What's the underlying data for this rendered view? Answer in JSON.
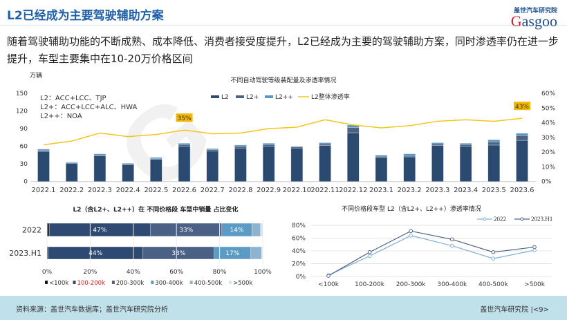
{
  "header": {
    "title": "L2已经成为主要驾驶辅助方案",
    "logo_cn": "盖世汽车研究院",
    "logo_en_g": "G",
    "logo_en_rest": "asgoo"
  },
  "paragraph": "随着驾驶辅助功能的不断成熟、成本降低、消费者接受度提升，L2已经成为主要的驾驶辅助方案，同时渗透率仍在进一步提升，车型主要集中在10-20万价格区间",
  "notes": [
    "L2：ACC+LCC、TJP",
    "L2+：ACC+LCC+ALC、HWA",
    "L2++：NOA"
  ],
  "footer": {
    "source": "资料来源：盖世汽车数据库；盖世汽车研究院分析",
    "page": "盖世汽车研究院 |<9>"
  },
  "colors": {
    "L2": "#2b4a70",
    "L2+": "#4d6283",
    "L2++": "#5a96c0",
    "rate": "#f5c518",
    "label_bg": "#f5b800"
  },
  "chart_data": [
    {
      "type": "bar",
      "title": "不同自动驾驶等级装配量及渗透率情况",
      "ylabel": "万辆",
      "ylim": [
        0,
        150
      ],
      "yticks": [
        0,
        30,
        60,
        90,
        120,
        150
      ],
      "y2lim": [
        0,
        60
      ],
      "y2ticks": [
        "0%",
        "10%",
        "20%",
        "30%",
        "40%",
        "50%",
        "60%"
      ],
      "categories": [
        "2022.1",
        "2022.2",
        "2022.3",
        "2022.4",
        "2022.5",
        "2022.6",
        "2022.7",
        "2022.8",
        "2022.9",
        "2022.10",
        "2022.11",
        "2022.12",
        "2023.1",
        "2023.2",
        "2023.3",
        "2023.4",
        "2023.5",
        "2023.6"
      ],
      "series": [
        {
          "name": "L2",
          "values": [
            51,
            31,
            44,
            29,
            38,
            60,
            52,
            57,
            60,
            57,
            61,
            83,
            41,
            42,
            61,
            60,
            62,
            70
          ]
        },
        {
          "name": "L2+",
          "values": [
            2,
            1,
            1,
            1,
            1,
            3,
            2,
            3,
            3,
            2,
            3,
            9,
            2,
            2,
            3,
            3,
            5,
            8
          ]
        },
        {
          "name": "L2++",
          "values": [
            2,
            1,
            2,
            1,
            2,
            2,
            2,
            2,
            2,
            1,
            2,
            4,
            2,
            3,
            2,
            2,
            4,
            4
          ]
        },
        {
          "name": "L2整体渗透率",
          "type": "line",
          "axis": "right",
          "values": [
            25,
            27.5,
            33,
            30.6,
            32,
            35,
            32.5,
            33,
            36,
            37,
            42,
            38.5,
            36.5,
            38,
            41,
            42,
            41,
            43
          ]
        }
      ],
      "annotations": [
        {
          "category": "2022.6",
          "text": "35%"
        },
        {
          "category": "2023.6",
          "text": "43%"
        }
      ],
      "legend": "top"
    },
    {
      "type": "bar",
      "orientation": "horizontal-stacked",
      "title": "L2（含L2+、L2++）在 不同价格段 车型中销量 占比变化",
      "categories": [
        "2022",
        "2023.H1"
      ],
      "xticks": [
        "0%",
        "20%",
        "40%",
        "60%",
        "80%",
        "100%"
      ],
      "series": [
        {
          "name": "<100k",
          "color": "#1a1a1a",
          "values": [
            1,
            0.5
          ]
        },
        {
          "name": "100-200k",
          "color": "#2e4a72",
          "values": [
            47,
            44
          ]
        },
        {
          "name": "200-300k",
          "color": "#4a6185",
          "values": [
            33,
            33
          ]
        },
        {
          "name": "300-400k",
          "color": "#5b9bc4",
          "values": [
            14,
            17
          ]
        },
        {
          "name": "400-500k",
          "color": "#8db3d1",
          "values": [
            4,
            5
          ]
        },
        {
          "name": ">500k",
          "color": "#d6e4ef",
          "values": [
            1,
            0.5
          ]
        }
      ],
      "data_labels": [
        [
          "",
          "47%",
          "33%",
          "14%",
          "",
          ""
        ],
        [
          "",
          "44%",
          "33%",
          "17%",
          "",
          ""
        ]
      ],
      "highlight_legend": "100-200k",
      "legend": "bottom"
    },
    {
      "type": "line",
      "title": "不同价格段车型  L2（含L2+、L2++）渗透率情况",
      "categories": [
        "<100k",
        "100-200k",
        "200-300k",
        "300-400k",
        "400-500k",
        ">500k"
      ],
      "ylim": [
        0,
        80
      ],
      "yticks": [
        "0%",
        "20%",
        "40%",
        "60%",
        "80%"
      ],
      "series": [
        {
          "name": "2022",
          "color": "#7fb0d6",
          "values": [
            2,
            32,
            64,
            48,
            28,
            41
          ]
        },
        {
          "name": "2023.H1",
          "color": "#4d6283",
          "values": [
            1,
            38,
            71,
            58,
            38,
            46
          ]
        }
      ],
      "legend": "top-right"
    }
  ]
}
